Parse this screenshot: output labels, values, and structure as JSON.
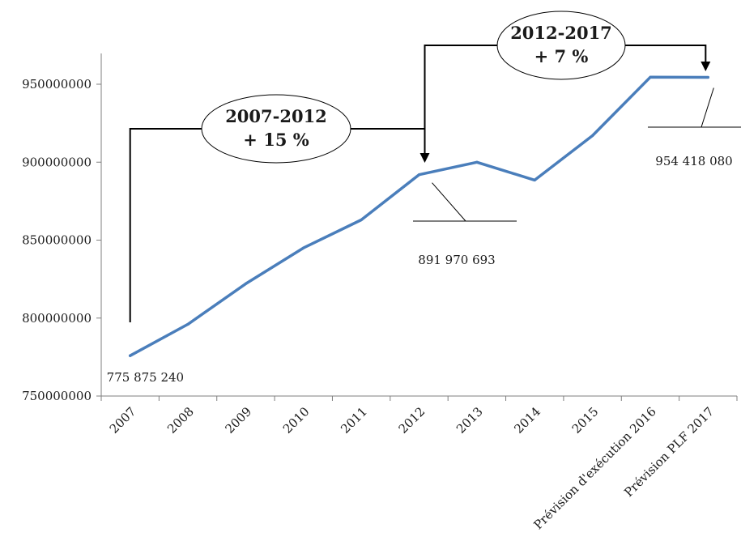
{
  "chart_data": {
    "type": "line",
    "categories": [
      "2007",
      "2008",
      "2009",
      "2010",
      "2011",
      "2012",
      "2013",
      "2014",
      "2015",
      "Prévision d'exécution 2016",
      "Prévision PLF 2017"
    ],
    "series": [
      {
        "values": [
          775875240,
          796000000,
          822000000,
          845000000,
          863000000,
          891970693,
          900000000,
          888500000,
          917000000,
          954500000,
          954418080
        ],
        "color": "#4a7ebb"
      }
    ],
    "ylim": [
      750000000,
      970000000
    ],
    "yticks": [
      "750000000",
      "800000000",
      "850000000",
      "900000000",
      "950000000"
    ],
    "data_labels": [
      {
        "index": 0,
        "text": "775 875 240"
      },
      {
        "index": 5,
        "text": "891 970 693"
      },
      {
        "index": 10,
        "text": "954 418 080"
      }
    ],
    "annotations": [
      {
        "line1": "2007-2012",
        "line2": "+ 15 %",
        "from": 0,
        "to": 5
      },
      {
        "line1": "2012-2017",
        "line2": "+ 7 %",
        "from": 5,
        "to": 10
      }
    ],
    "grid": false,
    "legend": "none"
  }
}
